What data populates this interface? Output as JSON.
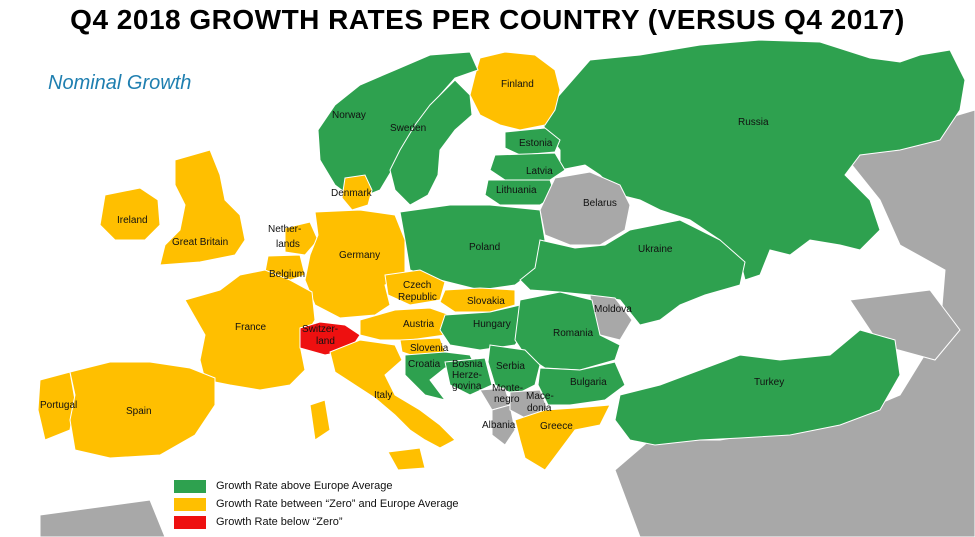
{
  "title": "Q4 2018 GROWTH RATES PER COUNTRY (VERSUS Q4 2017)",
  "subtitle": "Nominal Growth",
  "colors": {
    "above": "#2ea14f",
    "between": "#ffbf00",
    "below": "#ee1010",
    "nodata": "#a8a8a8",
    "sea": "#ffffff"
  },
  "legend": [
    {
      "label": "Growth Rate above Europe Average",
      "color": "#2ea14f"
    },
    {
      "label": "Growth Rate between “Zero” and Europe Average",
      "color": "#ffbf00"
    },
    {
      "label": "Growth Rate below “Zero”",
      "color": "#ee1010"
    }
  ],
  "countries": {
    "finland": "Finland",
    "norway": "Norway",
    "sweden": "Sweden",
    "russia": "Russia",
    "estonia": "Estonia",
    "latvia": "Latvia",
    "lithuania": "Lithuania",
    "belarus": "Belarus",
    "denmark": "Denmark",
    "ireland": "Ireland",
    "great_britain": "Great Britain",
    "netherlands_1": "Nether-",
    "netherlands_2": "lands",
    "belgium": "Belgium",
    "germany": "Germany",
    "poland": "Poland",
    "ukraine": "Ukraine",
    "czech_1": "Czech",
    "czech_2": "Republic",
    "slovakia": "Slovakia",
    "moldova": "Moldova",
    "france": "France",
    "switzerland_1": "Switzer-",
    "switzerland_2": "land",
    "austria": "Austria",
    "hungary": "Hungary",
    "romania": "Romania",
    "slovenia": "Slovenia",
    "croatia": "Croatia",
    "bosnia_1": "Bosnia",
    "bosnia_2": "Herze-",
    "bosnia_3": "govina",
    "serbia": "Serbia",
    "montenegro_1": "Monte-",
    "montenegro_2": "negro",
    "macedonia_1": "Mace-",
    "macedonia_2": "donia",
    "bulgaria": "Bulgaria",
    "turkey": "Turkey",
    "portugal": "Portugal",
    "spain": "Spain",
    "italy": "Italy",
    "albania": "Albania",
    "greece": "Greece"
  }
}
